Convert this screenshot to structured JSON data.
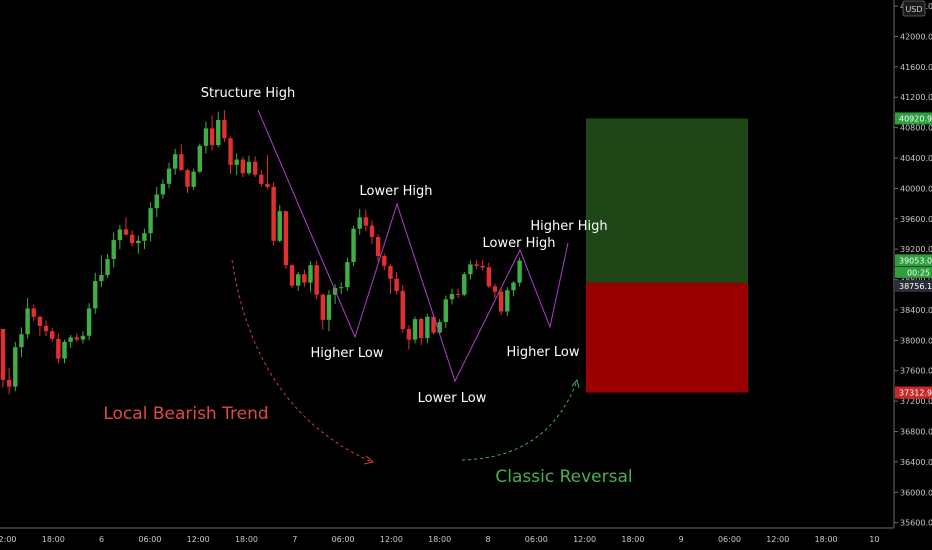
{
  "chart_data": {
    "type": "candlestick",
    "instrument_currency": "USD",
    "y_axis": {
      "min": 35530,
      "max": 42480,
      "ticks": [
        "42400.00",
        "42000.00",
        "41600.00",
        "41200.00",
        "40800.00",
        "40400.00",
        "40000.00",
        "39600.00",
        "39200.00",
        "38800.00",
        "38400.00",
        "38000.00",
        "37600.00",
        "37200.00",
        "36800.00",
        "36400.00",
        "36000.00",
        "35600.00"
      ]
    },
    "x_axis": {
      "ticks": [
        "12:00",
        "18:00",
        "6",
        "06:00",
        "12:00",
        "18:00",
        "7",
        "06:00",
        "12:00",
        "18:00",
        "8",
        "06:00",
        "12:00",
        "18:00",
        "9",
        "06:00",
        "12:00",
        "18:00",
        "10"
      ]
    },
    "price_labels": {
      "target": {
        "value": "40920.98",
        "color": "#2e9e3e"
      },
      "current": {
        "value": "39053.08",
        "color": "#2e9e3e"
      },
      "countdown": {
        "value": "00:25",
        "color": "#2e9e3e"
      },
      "entry": {
        "value": "38756.16",
        "color": "#2a2e39"
      },
      "stop": {
        "value": "37312.95",
        "color": "#c72828"
      }
    },
    "position_box": {
      "entry": 38756.16,
      "target": 40920.98,
      "stop": 37312.95,
      "profit_color": "#1e4616",
      "loss_color": "#9a0000"
    },
    "candles": [
      [
        38150,
        38150,
        37380,
        37480
      ],
      [
        37480,
        37640,
        37290,
        37390
      ],
      [
        37390,
        37980,
        37330,
        37910
      ],
      [
        37910,
        38170,
        37780,
        38080
      ],
      [
        38080,
        38560,
        38020,
        38420
      ],
      [
        38420,
        38470,
        38260,
        38310
      ],
      [
        38310,
        38320,
        38060,
        38190
      ],
      [
        38190,
        38260,
        38060,
        38120
      ],
      [
        38120,
        38160,
        37980,
        38020
      ],
      [
        38020,
        38090,
        37700,
        37760
      ],
      [
        37760,
        38010,
        37700,
        37980
      ],
      [
        37980,
        38070,
        37900,
        38040
      ],
      [
        38040,
        38090,
        37980,
        38010
      ],
      [
        38010,
        38120,
        37960,
        38060
      ],
      [
        38060,
        38490,
        38000,
        38420
      ],
      [
        38420,
        38890,
        38350,
        38780
      ],
      [
        38780,
        39120,
        38700,
        38860
      ],
      [
        38860,
        39140,
        38820,
        39070
      ],
      [
        39070,
        39420,
        38960,
        39320
      ],
      [
        39320,
        39520,
        39200,
        39460
      ],
      [
        39460,
        39620,
        39380,
        39390
      ],
      [
        39390,
        39450,
        39240,
        39280
      ],
      [
        39280,
        39380,
        39140,
        39310
      ],
      [
        39310,
        39470,
        39200,
        39410
      ],
      [
        39410,
        39820,
        39300,
        39740
      ],
      [
        39740,
        40020,
        39620,
        39920
      ],
      [
        39920,
        40120,
        39860,
        40060
      ],
      [
        40060,
        40340,
        40000,
        40260
      ],
      [
        40260,
        40520,
        40180,
        40450
      ],
      [
        40450,
        40580,
        40300,
        40240
      ],
      [
        40240,
        40260,
        39940,
        40020
      ],
      [
        40020,
        40260,
        39980,
        40220
      ],
      [
        40220,
        40590,
        40200,
        40560
      ],
      [
        40560,
        40880,
        40460,
        40790
      ],
      [
        40790,
        40960,
        40500,
        40570
      ],
      [
        40570,
        41010,
        40540,
        40900
      ],
      [
        40900,
        41030,
        40610,
        40660
      ],
      [
        40660,
        40680,
        40190,
        40310
      ],
      [
        40310,
        40460,
        40180,
        40380
      ],
      [
        40380,
        40420,
        40150,
        40200
      ],
      [
        40200,
        40430,
        40170,
        40350
      ],
      [
        40350,
        40420,
        40150,
        40180
      ],
      [
        40180,
        40240,
        40020,
        40060
      ],
      [
        40060,
        40440,
        40000,
        40020
      ],
      [
        40020,
        40080,
        39250,
        39310
      ],
      [
        39310,
        39780,
        39290,
        39700
      ],
      [
        39700,
        39710,
        38940,
        38990
      ],
      [
        38990,
        39000,
        38690,
        38720
      ],
      [
        38720,
        38900,
        38650,
        38870
      ],
      [
        38870,
        38930,
        38700,
        38760
      ],
      [
        38760,
        39040,
        38640,
        38990
      ],
      [
        38990,
        39050,
        38540,
        38600
      ],
      [
        38600,
        38620,
        38140,
        38270
      ],
      [
        38270,
        38660,
        38120,
        38600
      ],
      [
        38600,
        38740,
        38480,
        38690
      ],
      [
        38690,
        38760,
        38610,
        38700
      ],
      [
        38700,
        39090,
        38650,
        39030
      ],
      [
        39030,
        39510,
        38980,
        39470
      ],
      [
        39470,
        39730,
        39390,
        39620
      ],
      [
        39620,
        39720,
        39440,
        39510
      ],
      [
        39510,
        39580,
        39270,
        39360
      ],
      [
        39360,
        39400,
        39040,
        39110
      ],
      [
        39110,
        39140,
        38920,
        38980
      ],
      [
        38980,
        39000,
        38610,
        38810
      ],
      [
        38810,
        38900,
        38600,
        38650
      ],
      [
        38650,
        38730,
        38100,
        38150
      ],
      [
        38150,
        38200,
        37880,
        38010
      ],
      [
        38010,
        38310,
        37960,
        38280
      ],
      [
        38280,
        38300,
        37940,
        38030
      ],
      [
        38030,
        38350,
        37960,
        38310
      ],
      [
        38310,
        38340,
        38080,
        38100
      ],
      [
        38100,
        38280,
        38090,
        38240
      ],
      [
        38240,
        38590,
        38160,
        38540
      ],
      [
        38540,
        38680,
        38470,
        38610
      ],
      [
        38610,
        38680,
        38560,
        38600
      ],
      [
        38600,
        38900,
        38580,
        38870
      ],
      [
        38870,
        39050,
        38800,
        39000
      ],
      [
        39000,
        39060,
        38940,
        38980
      ],
      [
        38980,
        39060,
        38920,
        38960
      ],
      [
        38960,
        39020,
        38690,
        38710
      ],
      [
        38710,
        38740,
        38560,
        38640
      ],
      [
        38640,
        38690,
        38330,
        38380
      ],
      [
        38380,
        38700,
        38320,
        38660
      ],
      [
        38660,
        38780,
        38580,
        38760
      ],
      [
        38760,
        39090,
        38710,
        39050
      ]
    ],
    "annotations": {
      "structure_high": "Structure High",
      "lower_high_1": "Lower High",
      "higher_low_1": "Higher Low",
      "lower_low": "Lower Low",
      "lower_high_2": "Lower High",
      "higher_high": "Higher High",
      "higher_low_2": "Higher Low",
      "bearish_trend": "Local Bearish Trend",
      "classic_reversal": "Classic Reversal"
    },
    "colors": {
      "up": "#3fae44",
      "down": "#e23030",
      "zigzag": "#b040c8",
      "bear_text": "#e04a4a",
      "bull_text": "#4caf50",
      "bear_arrow": "#d43c3c",
      "bull_arrow": "#49b04f"
    }
  }
}
